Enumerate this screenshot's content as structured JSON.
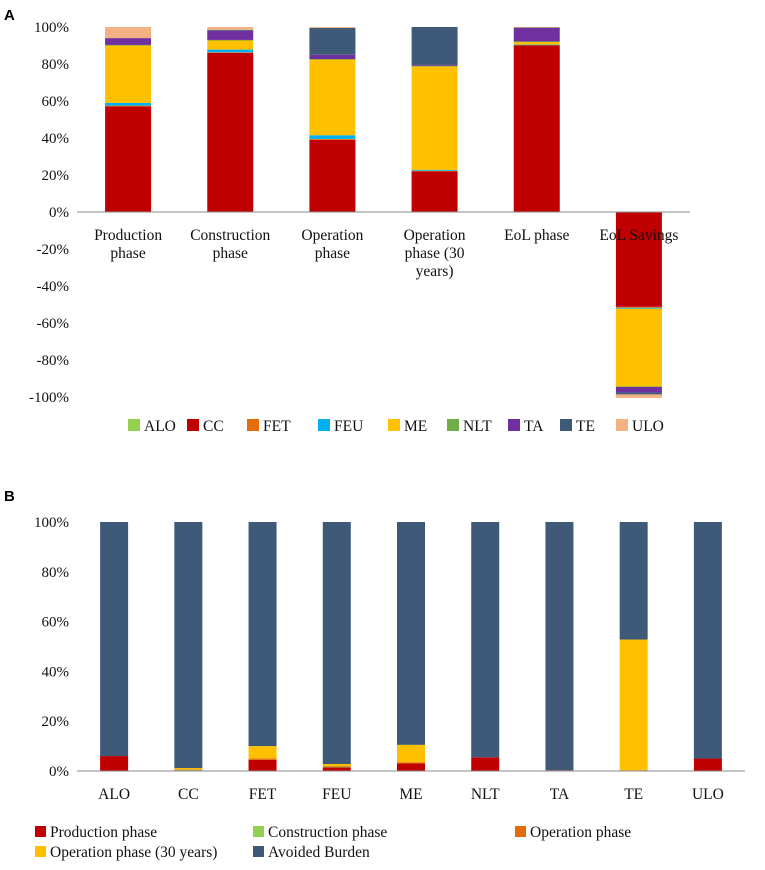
{
  "chart_data": [
    {
      "panel": "A",
      "type": "bar",
      "stacked": true,
      "categories": [
        [
          "Production",
          "phase"
        ],
        [
          "Construction",
          "phase"
        ],
        [
          "Operation",
          "phase"
        ],
        [
          "Operation",
          "phase (30",
          "years)"
        ],
        [
          "EoL phase"
        ],
        [
          "EoL Savings"
        ]
      ],
      "ylim": [
        -100,
        100
      ],
      "yticks": [
        100,
        80,
        60,
        40,
        20,
        0,
        -20,
        -40,
        -60,
        -80,
        -100
      ],
      "tick_format": "{v}%",
      "legend_position": "bottom",
      "series": [
        {
          "name": "ALO",
          "color": "#92D050",
          "values": [
            0,
            0,
            0,
            0,
            0,
            -0.3
          ]
        },
        {
          "name": "CC",
          "color": "#C00000",
          "values": [
            57,
            86,
            39,
            22,
            90,
            -51
          ]
        },
        {
          "name": "FET",
          "color": "#E46C0A",
          "values": [
            0.5,
            0.3,
            0.5,
            0.3,
            0.3,
            -0.5
          ]
        },
        {
          "name": "FEU",
          "color": "#00B0F0",
          "values": [
            1.5,
            1.5,
            2,
            0.5,
            0.2,
            -0.5
          ]
        },
        {
          "name": "ME",
          "color": "#FFC000",
          "values": [
            31,
            5,
            41,
            56,
            1.5,
            -42
          ]
        },
        {
          "name": "NLT",
          "color": "#70AD47",
          "values": [
            0.3,
            0.2,
            0.2,
            0.2,
            0.2,
            -0.3
          ]
        },
        {
          "name": "TA",
          "color": "#7030A0",
          "values": [
            3.7,
            5,
            2.3,
            0.5,
            7.3,
            -3
          ]
        },
        {
          "name": "TE",
          "color": "#3E5A78",
          "values": [
            0,
            0.5,
            14.5,
            20.5,
            0.3,
            -1
          ]
        },
        {
          "name": "ULO",
          "color": "#F4B183",
          "values": [
            6,
            1.5,
            0.5,
            0,
            0.2,
            -1.9
          ]
        }
      ]
    },
    {
      "panel": "B",
      "type": "bar",
      "stacked": true,
      "categories": [
        [
          "ALO"
        ],
        [
          "CC"
        ],
        [
          "FET"
        ],
        [
          "FEU"
        ],
        [
          "ME"
        ],
        [
          "NLT"
        ],
        [
          "TA"
        ],
        [
          "TE"
        ],
        [
          "ULO"
        ]
      ],
      "ylim": [
        0,
        100
      ],
      "yticks": [
        100,
        80,
        60,
        40,
        20,
        0
      ],
      "tick_format": "{v}%",
      "legend_position": "bottom",
      "series": [
        {
          "name": "Production phase",
          "color": "#C00000",
          "values": [
            6,
            0.3,
            4.5,
            1.5,
            3,
            5.5,
            0.3,
            0,
            5
          ]
        },
        {
          "name": "Construction phase",
          "color": "#92D050",
          "values": [
            0,
            0.2,
            0,
            0.2,
            0,
            0,
            0,
            0,
            0
          ]
        },
        {
          "name": "Operation phase",
          "color": "#E46C0A",
          "values": [
            0,
            0.2,
            0.5,
            0.3,
            0.5,
            0,
            0,
            0.3,
            0
          ]
        },
        {
          "name": "Operation phase (30 years)",
          "color": "#FFC000",
          "values": [
            0,
            0.5,
            5,
            0.8,
            7,
            0,
            0,
            52.5,
            0
          ]
        },
        {
          "name": "Avoided Burden",
          "color": "#3E5A78",
          "values": [
            94,
            98.8,
            90,
            97.2,
            89.5,
            94.5,
            99.7,
            47.2,
            95
          ]
        }
      ]
    }
  ]
}
